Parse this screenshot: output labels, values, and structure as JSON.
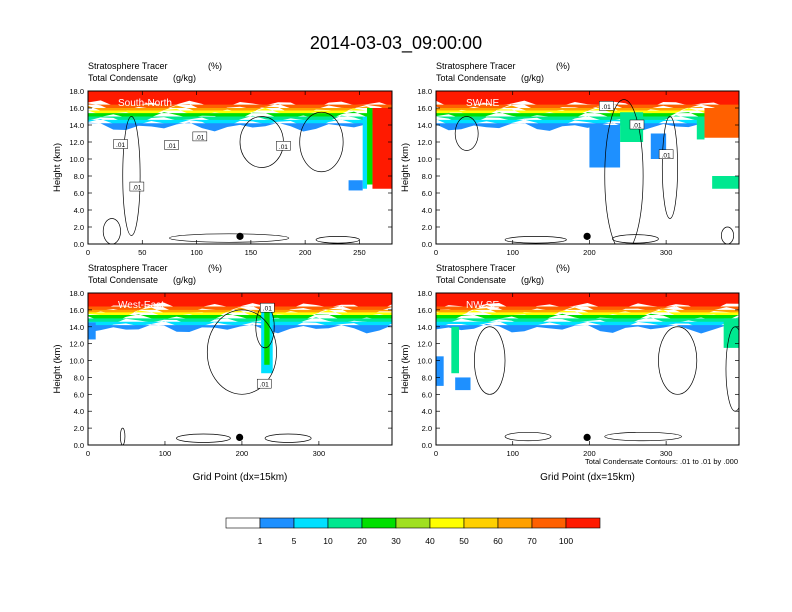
{
  "figure": {
    "title": "2014-03-03_09:00:00",
    "contour_note": "Total Condensate Contours: .01 to .01 by .000"
  },
  "colors": {
    "levels": [
      "#ffffff",
      "#1e90ff",
      "#00e0ff",
      "#00e890",
      "#00e000",
      "#a0e020",
      "#ffff00",
      "#ffd000",
      "#ffa000",
      "#ff6000",
      "#ff1a00"
    ],
    "contour": "#000000"
  },
  "colorbar": {
    "labels": [
      "1",
      "5",
      "10",
      "20",
      "30",
      "40",
      "50",
      "60",
      "70",
      "100"
    ]
  },
  "chart_data": [
    {
      "type": "heatmap",
      "panel": "South-North",
      "title_left_1": "Stratosphere Tracer",
      "title_right_1": "(%)",
      "title_left_2": "Total Condensate",
      "title_right_2": "(g/kg)",
      "xlabel": "",
      "ylabel": "Height (km)",
      "xlim": [
        0,
        280
      ],
      "ylim": [
        0,
        18
      ],
      "xticks": [
        "0",
        "50",
        "100",
        "150",
        "200",
        "250"
      ],
      "yticks": [
        "0.0",
        "2.0",
        "4.0",
        "6.0",
        "8.0",
        "10.0",
        "12.0",
        "14.0",
        "16.0",
        "18.0"
      ],
      "marker_x": 140,
      "contour_labels": [
        ".01",
        ".01",
        ".01",
        ".01",
        ".01"
      ]
    },
    {
      "type": "heatmap",
      "panel": "SW-NE",
      "title_left_1": "Stratosphere Tracer",
      "title_right_1": "(%)",
      "title_left_2": "Total Condensate",
      "title_right_2": "(g/kg)",
      "xlabel": "",
      "ylabel": "Height (km)",
      "xlim": [
        0,
        395
      ],
      "ylim": [
        0,
        18
      ],
      "xticks": [
        "0",
        "100",
        "200",
        "300"
      ],
      "yticks": [
        "0.0",
        "2.0",
        "4.0",
        "6.0",
        "8.0",
        "10.0",
        "12.0",
        "14.0",
        "16.0",
        "18.0"
      ],
      "marker_x": 197,
      "contour_labels": [
        ".01",
        ".01",
        ".01"
      ]
    },
    {
      "type": "heatmap",
      "panel": "West-East",
      "title_left_1": "Stratosphere Tracer",
      "title_right_1": "(%)",
      "title_left_2": "Total Condensate",
      "title_right_2": "(g/kg)",
      "xlabel": "Grid Point (dx=15km)",
      "ylabel": "Height (km)",
      "xlim": [
        0,
        395
      ],
      "ylim": [
        0,
        18
      ],
      "xticks": [
        "0",
        "100",
        "200",
        "300"
      ],
      "yticks": [
        "0.0",
        "2.0",
        "4.0",
        "6.0",
        "8.0",
        "10.0",
        "12.0",
        "14.0",
        "16.0",
        "18.0"
      ],
      "marker_x": 197,
      "contour_labels": [
        ".01",
        ".01"
      ]
    },
    {
      "type": "heatmap",
      "panel": "NW-SE",
      "title_left_1": "Stratosphere Tracer",
      "title_right_1": "(%)",
      "title_left_2": "Total Condensate",
      "title_right_2": "(g/kg)",
      "xlabel": "Grid Point (dx=15km)",
      "ylabel": "Height (km)",
      "xlim": [
        0,
        395
      ],
      "ylim": [
        0,
        18
      ],
      "xticks": [
        "0",
        "100",
        "200",
        "300"
      ],
      "yticks": [
        "0.0",
        "2.0",
        "4.0",
        "6.0",
        "8.0",
        "10.0",
        "12.0",
        "14.0",
        "16.0",
        "18.0"
      ],
      "marker_x": 197,
      "contour_labels": []
    }
  ]
}
